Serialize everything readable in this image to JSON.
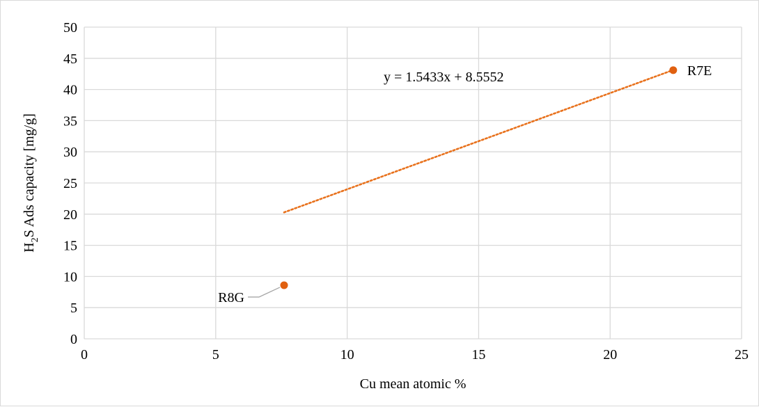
{
  "chart_data": {
    "type": "scatter",
    "title": "",
    "xlabel": "Cu mean atomic %",
    "ylabel": {
      "prefix": "H",
      "subscript": "2",
      "suffix": "S Ads capacity [mg/g]"
    },
    "xlim": [
      0,
      25
    ],
    "ylim": [
      0,
      50
    ],
    "x_ticks": [
      0,
      5,
      10,
      15,
      20,
      25
    ],
    "y_ticks": [
      0,
      5,
      10,
      15,
      20,
      25,
      30,
      35,
      40,
      45,
      50
    ],
    "grid": true,
    "legend": "none",
    "series": [
      {
        "color": "#e06010",
        "points": [
          {
            "label": "R8G",
            "x": 7.6,
            "y": 8.6
          },
          {
            "label": "R7E",
            "x": 22.4,
            "y": 43.1
          }
        ]
      }
    ],
    "trendline": {
      "type": "linear",
      "slope": 1.5433,
      "intercept": 8.5552,
      "x_range": [
        7.6,
        22.4
      ],
      "style": "dotted",
      "color": "#e8711c",
      "equation_label": "y = 1.5433x + 8.5552"
    }
  }
}
